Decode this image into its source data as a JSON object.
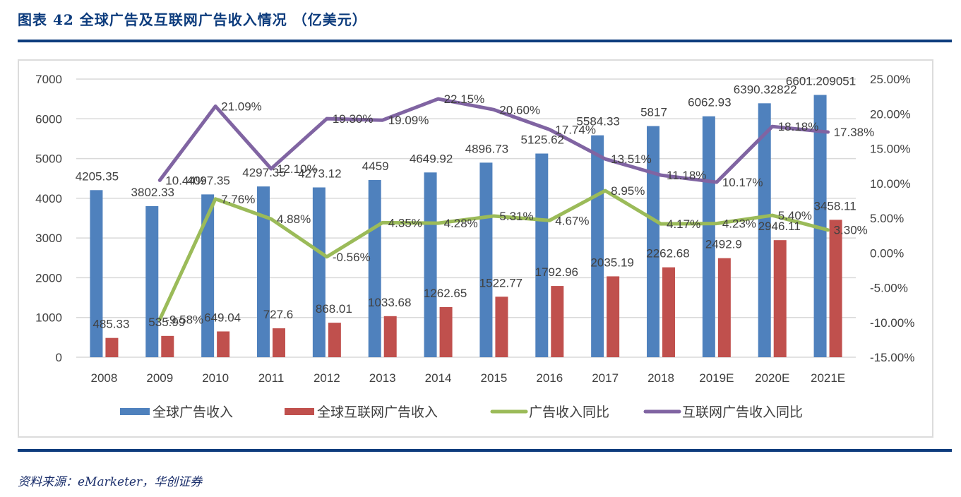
{
  "header": {
    "title": "图表 42 全球广告及互联网广告收入情况 （亿美元）"
  },
  "footer": {
    "source": "资料来源：eMarketer，华创证券"
  },
  "colors": {
    "title": "#0D3C7D",
    "global_ad": "#4F81BD",
    "internet_ad": "#C0504D",
    "ad_yoy": "#9BBB59",
    "internet_yoy": "#8064A2",
    "grid": "#D9D9D9",
    "text": "#404040"
  },
  "chart_data": {
    "type": "bar",
    "title": "全球广告及互联网广告收入情况（亿美元）",
    "xlabel": "",
    "ylabel": "",
    "categories": [
      "2008",
      "2009",
      "2010",
      "2011",
      "2012",
      "2013",
      "2014",
      "2015",
      "2016",
      "2017",
      "2018",
      "2019E",
      "2020E",
      "2021E"
    ],
    "ylim": [
      0,
      7000
    ],
    "yticks": [
      "0",
      "1000",
      "2000",
      "3000",
      "4000",
      "5000",
      "6000",
      "7000"
    ],
    "y2lim": [
      -15,
      25
    ],
    "y2ticks": [
      "-15.00%",
      "-10.00%",
      "-5.00%",
      "0.00%",
      "5.00%",
      "10.00%",
      "15.00%",
      "20.00%",
      "25.00%"
    ],
    "grid": true,
    "legend_position": "bottom",
    "series": [
      {
        "name": "全球广告收入",
        "type": "bar",
        "axis": "left",
        "values": [
          4205.35,
          3802.33,
          4097.35,
          4297.35,
          4273.12,
          4459,
          4649.92,
          4896.73,
          5125.62,
          5584.33,
          5817,
          6062.93,
          6390.32822,
          6601.209051
        ],
        "labels": [
          "4205.35",
          "3802.33",
          "4097.35",
          "4297.35",
          "4273.12",
          "4459",
          "4649.92",
          "4896.73",
          "5125.62",
          "5584.33",
          "5817",
          "6062.93",
          "6390.32822",
          "6601.209051"
        ]
      },
      {
        "name": "全球互联网广告收入",
        "type": "bar",
        "axis": "left",
        "values": [
          485.33,
          535.99,
          649.04,
          727.6,
          868.01,
          1033.68,
          1262.65,
          1522.77,
          1792.96,
          2035.19,
          2262.68,
          2492.9,
          2946.11,
          3458.11
        ],
        "labels": [
          "485.33",
          "535.99",
          "649.04",
          "727.6",
          "868.01",
          "1033.68",
          "1262.65",
          "1522.77",
          "1792.96",
          "2035.19",
          "2262.68",
          "2492.9",
          "2946.11",
          "3458.11"
        ]
      },
      {
        "name": "广告收入同比",
        "type": "line",
        "axis": "right",
        "values": [
          null,
          -9.58,
          7.76,
          4.88,
          -0.56,
          4.35,
          4.28,
          5.31,
          4.67,
          8.95,
          4.17,
          4.23,
          5.4,
          3.3
        ],
        "labels": [
          null,
          "-9.58%",
          "7.76%",
          "4.88%",
          "-0.56%",
          "4.35%",
          "4.28%",
          "5.31%",
          "4.67%",
          "8.95%",
          "4.17%",
          "4.23%",
          "5.40%",
          "3.30%"
        ]
      },
      {
        "name": "互联网广告收入同比",
        "type": "line",
        "axis": "right",
        "values": [
          null,
          10.44,
          21.09,
          12.1,
          19.3,
          19.09,
          22.15,
          20.6,
          17.74,
          13.51,
          11.18,
          10.17,
          18.18,
          17.38
        ],
        "labels": [
          null,
          "10.44%",
          "21.09%",
          "12.10%",
          "19.30%",
          "19.09%",
          "22.15%",
          "20.60%",
          "17.74%",
          "13.51%",
          "11.18%",
          "10.17%",
          "18.18%",
          "17.38%"
        ]
      }
    ]
  }
}
